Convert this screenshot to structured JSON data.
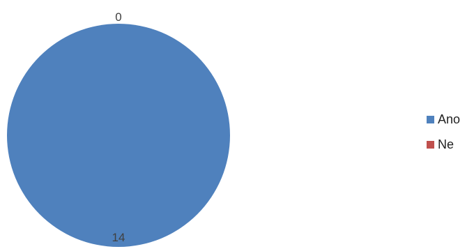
{
  "chart_data": {
    "type": "pie",
    "categories": [
      "Ano",
      "Ne"
    ],
    "values": [
      14,
      0
    ],
    "colors": [
      "#4f81bd",
      "#c0504d"
    ],
    "data_labels": [
      "14",
      "0"
    ],
    "legend_position": "right"
  }
}
